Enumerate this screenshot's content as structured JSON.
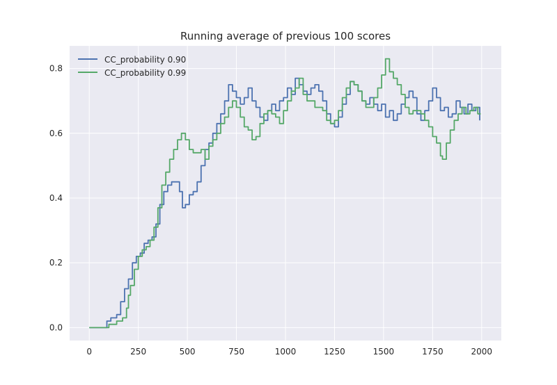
{
  "chart_data": {
    "type": "line",
    "title": "Running average of previous 100 scores",
    "xlabel": "",
    "ylabel": "",
    "xlim": [
      -100,
      2100
    ],
    "ylim": [
      -0.04,
      0.87
    ],
    "xticks": [
      0,
      250,
      500,
      750,
      1000,
      1250,
      1500,
      1750,
      2000
    ],
    "yticks": [
      0.0,
      0.2,
      0.4,
      0.6,
      0.8
    ],
    "xtick_labels": [
      "0",
      "250",
      "500",
      "750",
      "1000",
      "1250",
      "1500",
      "1750",
      "2000"
    ],
    "ytick_labels": [
      "0.0",
      "0.2",
      "0.4",
      "0.6",
      "0.8"
    ],
    "grid": true,
    "legend_position": "upper-left",
    "series": [
      {
        "name": "CC_probability 0.90",
        "color": "#4c72b0",
        "points": [
          [
            0,
            0
          ],
          [
            80,
            0
          ],
          [
            90,
            0.02
          ],
          [
            110,
            0.03
          ],
          [
            140,
            0.04
          ],
          [
            160,
            0.08
          ],
          [
            180,
            0.12
          ],
          [
            200,
            0.15
          ],
          [
            220,
            0.2
          ],
          [
            240,
            0.22
          ],
          [
            260,
            0.23
          ],
          [
            280,
            0.26
          ],
          [
            300,
            0.27
          ],
          [
            320,
            0.28
          ],
          [
            340,
            0.32
          ],
          [
            360,
            0.38
          ],
          [
            380,
            0.42
          ],
          [
            400,
            0.44
          ],
          [
            420,
            0.45
          ],
          [
            440,
            0.45
          ],
          [
            460,
            0.42
          ],
          [
            475,
            0.37
          ],
          [
            490,
            0.38
          ],
          [
            510,
            0.41
          ],
          [
            530,
            0.42
          ],
          [
            550,
            0.45
          ],
          [
            570,
            0.5
          ],
          [
            590,
            0.55
          ],
          [
            610,
            0.57
          ],
          [
            630,
            0.6
          ],
          [
            650,
            0.63
          ],
          [
            670,
            0.66
          ],
          [
            690,
            0.7
          ],
          [
            710,
            0.75
          ],
          [
            730,
            0.73
          ],
          [
            750,
            0.71
          ],
          [
            770,
            0.69
          ],
          [
            790,
            0.71
          ],
          [
            810,
            0.74
          ],
          [
            830,
            0.7
          ],
          [
            850,
            0.68
          ],
          [
            870,
            0.65
          ],
          [
            890,
            0.64
          ],
          [
            910,
            0.67
          ],
          [
            930,
            0.69
          ],
          [
            950,
            0.67
          ],
          [
            970,
            0.7
          ],
          [
            990,
            0.71
          ],
          [
            1010,
            0.74
          ],
          [
            1030,
            0.72
          ],
          [
            1050,
            0.77
          ],
          [
            1070,
            0.75
          ],
          [
            1090,
            0.73
          ],
          [
            1110,
            0.72
          ],
          [
            1130,
            0.74
          ],
          [
            1150,
            0.75
          ],
          [
            1170,
            0.73
          ],
          [
            1190,
            0.7
          ],
          [
            1210,
            0.66
          ],
          [
            1230,
            0.63
          ],
          [
            1250,
            0.62
          ],
          [
            1270,
            0.65
          ],
          [
            1290,
            0.69
          ],
          [
            1310,
            0.72
          ],
          [
            1330,
            0.76
          ],
          [
            1350,
            0.75
          ],
          [
            1370,
            0.73
          ],
          [
            1390,
            0.7
          ],
          [
            1410,
            0.69
          ],
          [
            1430,
            0.71
          ],
          [
            1450,
            0.69
          ],
          [
            1470,
            0.67
          ],
          [
            1490,
            0.69
          ],
          [
            1510,
            0.65
          ],
          [
            1530,
            0.67
          ],
          [
            1550,
            0.64
          ],
          [
            1570,
            0.66
          ],
          [
            1590,
            0.69
          ],
          [
            1610,
            0.71
          ],
          [
            1630,
            0.73
          ],
          [
            1650,
            0.71
          ],
          [
            1670,
            0.66
          ],
          [
            1690,
            0.64
          ],
          [
            1710,
            0.67
          ],
          [
            1730,
            0.7
          ],
          [
            1750,
            0.74
          ],
          [
            1770,
            0.71
          ],
          [
            1790,
            0.67
          ],
          [
            1810,
            0.68
          ],
          [
            1830,
            0.65
          ],
          [
            1850,
            0.66
          ],
          [
            1870,
            0.7
          ],
          [
            1890,
            0.68
          ],
          [
            1910,
            0.66
          ],
          [
            1930,
            0.69
          ],
          [
            1950,
            0.67
          ],
          [
            1970,
            0.68
          ],
          [
            1990,
            0.64
          ]
        ]
      },
      {
        "name": "CC_probability 0.99",
        "color": "#55a868",
        "points": [
          [
            0,
            0
          ],
          [
            90,
            0
          ],
          [
            100,
            0.01
          ],
          [
            140,
            0.02
          ],
          [
            170,
            0.03
          ],
          [
            190,
            0.06
          ],
          [
            200,
            0.1
          ],
          [
            210,
            0.13
          ],
          [
            230,
            0.18
          ],
          [
            250,
            0.22
          ],
          [
            270,
            0.24
          ],
          [
            290,
            0.25
          ],
          [
            310,
            0.27
          ],
          [
            330,
            0.31
          ],
          [
            350,
            0.37
          ],
          [
            370,
            0.44
          ],
          [
            390,
            0.48
          ],
          [
            410,
            0.52
          ],
          [
            430,
            0.55
          ],
          [
            450,
            0.58
          ],
          [
            470,
            0.6
          ],
          [
            490,
            0.58
          ],
          [
            510,
            0.55
          ],
          [
            530,
            0.54
          ],
          [
            550,
            0.54
          ],
          [
            570,
            0.55
          ],
          [
            590,
            0.52
          ],
          [
            610,
            0.56
          ],
          [
            630,
            0.58
          ],
          [
            650,
            0.6
          ],
          [
            670,
            0.63
          ],
          [
            690,
            0.65
          ],
          [
            710,
            0.68
          ],
          [
            730,
            0.7
          ],
          [
            750,
            0.68
          ],
          [
            770,
            0.65
          ],
          [
            790,
            0.62
          ],
          [
            810,
            0.61
          ],
          [
            830,
            0.58
          ],
          [
            850,
            0.59
          ],
          [
            870,
            0.63
          ],
          [
            890,
            0.66
          ],
          [
            910,
            0.67
          ],
          [
            930,
            0.66
          ],
          [
            950,
            0.65
          ],
          [
            970,
            0.63
          ],
          [
            990,
            0.67
          ],
          [
            1010,
            0.7
          ],
          [
            1030,
            0.73
          ],
          [
            1050,
            0.74
          ],
          [
            1070,
            0.77
          ],
          [
            1090,
            0.72
          ],
          [
            1110,
            0.7
          ],
          [
            1130,
            0.7
          ],
          [
            1150,
            0.68
          ],
          [
            1170,
            0.68
          ],
          [
            1190,
            0.67
          ],
          [
            1210,
            0.64
          ],
          [
            1230,
            0.63
          ],
          [
            1250,
            0.64
          ],
          [
            1270,
            0.67
          ],
          [
            1290,
            0.71
          ],
          [
            1310,
            0.74
          ],
          [
            1330,
            0.76
          ],
          [
            1350,
            0.75
          ],
          [
            1370,
            0.73
          ],
          [
            1390,
            0.7
          ],
          [
            1410,
            0.68
          ],
          [
            1430,
            0.68
          ],
          [
            1450,
            0.71
          ],
          [
            1470,
            0.74
          ],
          [
            1490,
            0.78
          ],
          [
            1510,
            0.83
          ],
          [
            1530,
            0.79
          ],
          [
            1550,
            0.77
          ],
          [
            1570,
            0.75
          ],
          [
            1590,
            0.72
          ],
          [
            1610,
            0.68
          ],
          [
            1630,
            0.66
          ],
          [
            1650,
            0.67
          ],
          [
            1670,
            0.67
          ],
          [
            1690,
            0.66
          ],
          [
            1710,
            0.64
          ],
          [
            1730,
            0.62
          ],
          [
            1750,
            0.59
          ],
          [
            1770,
            0.57
          ],
          [
            1790,
            0.53
          ],
          [
            1800,
            0.52
          ],
          [
            1820,
            0.57
          ],
          [
            1840,
            0.61
          ],
          [
            1860,
            0.64
          ],
          [
            1880,
            0.66
          ],
          [
            1900,
            0.68
          ],
          [
            1920,
            0.66
          ],
          [
            1940,
            0.67
          ],
          [
            1960,
            0.68
          ],
          [
            1980,
            0.66
          ],
          [
            1995,
            0.66
          ]
        ]
      }
    ]
  }
}
